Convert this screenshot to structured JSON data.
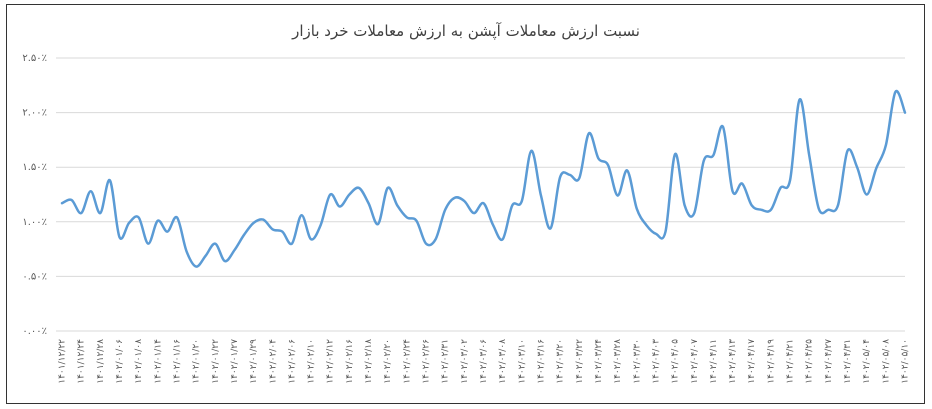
{
  "chart_data": {
    "type": "line",
    "title": "نسبت ارزش معاملات آپشن به ارزش معاملات خرد بازار",
    "categories": [
      "۱۴۰۱/۱۲/۲۲",
      null,
      "۱۴۰۱/۱۲/۲۴",
      null,
      "۱۴۰۱/۱۲/۲۸",
      null,
      "۱۴۰۲/۰۱/۰۶",
      null,
      "۱۴۰۲/۰۱/۰۸",
      null,
      "۱۴۰۲/۰۱/۱۴",
      null,
      "۱۴۰۲/۰۱/۱۶",
      null,
      "۱۴۰۲/۰۱/۲۰",
      null,
      "۱۴۰۲/۰۱/۲۲",
      null,
      "۱۴۰۲/۰۱/۲۷",
      null,
      "۱۴۰۲/۰۱/۲۹",
      null,
      "۱۴۰۲/۰۲/۰۴",
      null,
      "۱۴۰۲/۰۲/۰۶",
      null,
      "۱۴۰۲/۰۲/۱۰",
      null,
      "۱۴۰۲/۰۲/۱۲",
      null,
      "۱۴۰۲/۰۲/۱۶",
      null,
      "۱۴۰۲/۰۲/۱۸",
      null,
      "۱۴۰۲/۰۲/۲۰",
      null,
      "۱۴۰۲/۰۲/۲۴",
      null,
      "۱۴۰۲/۰۲/۲۶",
      null,
      "۱۴۰۲/۰۲/۳۱",
      null,
      "۱۴۰۲/۰۳/۰۲",
      null,
      "۱۴۰۲/۰۳/۰۶",
      null,
      "۱۴۰۲/۰۳/۰۸",
      null,
      "۱۴۰۲/۰۳/۱۰",
      null,
      "۱۴۰۲/۰۳/۱۶",
      null,
      "۱۴۰۲/۰۳/۲۰",
      null,
      "۱۴۰۲/۰۳/۲۲",
      null,
      "۱۴۰۲/۰۳/۲۴",
      null,
      "۱۴۰۲/۰۳/۲۸",
      null,
      "۱۴۰۲/۰۳/۳۰",
      null,
      "۱۴۰۲/۰۴/۰۳",
      null,
      "۱۴۰۲/۰۴/۰۵",
      null,
      "۱۴۰۲/۰۴/۰۷",
      null,
      "۱۴۰۲/۰۴/۱۱",
      null,
      "۱۴۰۲/۰۴/۱۳",
      null,
      "۱۴۰۲/۰۴/۱۷",
      null,
      "۱۴۰۲/۰۴/۱۹",
      null,
      "۱۴۰۲/۰۴/۲۱",
      null,
      "۱۴۰۲/۰۴/۲۵",
      null,
      "۱۴۰۲/۰۴/۲۷",
      null,
      "۱۴۰۲/۰۴/۳۱",
      null,
      "۱۴۰۲/۰۵/۰۴",
      null,
      "۱۴۰۲/۰۵/۰۸",
      null,
      "۱۴۰۲/۰۵/۱۰"
    ],
    "values": [
      1.17,
      1.2,
      1.08,
      1.28,
      1.08,
      1.38,
      0.86,
      0.99,
      1.04,
      0.8,
      1.01,
      0.91,
      1.04,
      0.73,
      0.59,
      0.69,
      0.8,
      0.64,
      0.74,
      0.88,
      0.99,
      1.02,
      0.93,
      0.91,
      0.8,
      1.06,
      0.84,
      0.97,
      1.25,
      1.14,
      1.25,
      1.31,
      1.17,
      0.98,
      1.31,
      1.15,
      1.04,
      1.01,
      0.8,
      0.84,
      1.11,
      1.22,
      1.19,
      1.08,
      1.17,
      0.97,
      0.84,
      1.15,
      1.19,
      1.65,
      1.24,
      0.94,
      1.41,
      1.43,
      1.4,
      1.81,
      1.58,
      1.52,
      1.24,
      1.47,
      1.12,
      0.97,
      0.89,
      0.91,
      1.62,
      1.15,
      1.08,
      1.56,
      1.61,
      1.87,
      1.28,
      1.35,
      1.15,
      1.11,
      1.11,
      1.31,
      1.38,
      2.12,
      1.61,
      1.12,
      1.11,
      1.15,
      1.65,
      1.5,
      1.25,
      1.49,
      1.7,
      2.19,
      2.0
    ],
    "color": "#5b9bd5",
    "ylim": [
      0,
      2.5
    ],
    "yticks": [
      {
        "value": 0,
        "label": "۰.۰۰٪"
      },
      {
        "value": 0.5,
        "label": "۰.۵۰٪"
      },
      {
        "value": 1,
        "label": "۱.۰۰٪"
      },
      {
        "value": 1.5,
        "label": "۱.۵۰٪"
      },
      {
        "value": 2,
        "label": "۲.۰۰٪"
      },
      {
        "value": 2.5,
        "label": "۲.۵۰٪"
      }
    ],
    "grid": true
  }
}
